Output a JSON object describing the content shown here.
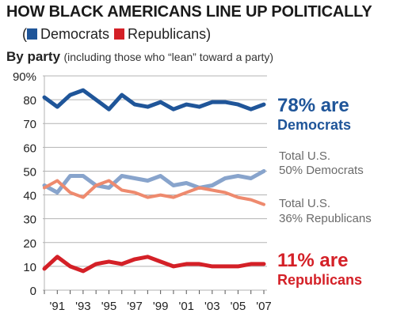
{
  "title": "HOW BLACK AMERICANS LINE UP POLITICALLY",
  "legend": {
    "open": "(",
    "close": ")",
    "democrats": "Democrats",
    "republicans": "Republicans"
  },
  "subtitle": {
    "bold": "By party",
    "note": "(including those who “lean” toward a party)"
  },
  "colors": {
    "black_dem": "#1f5599",
    "black_rep": "#d42027",
    "total_dem": "#88a4cc",
    "total_rep": "#ee8a6e",
    "grid": "#b3b3b3",
    "label_gray": "#6b6b6b"
  },
  "annotations": {
    "black_dem_value": "78% are",
    "black_dem_label": "Democrats",
    "total_dem_line1": "Total U.S.",
    "total_dem_line2": "50% Democrats",
    "total_rep_line1": "Total U.S.",
    "total_rep_line2": "36% Republicans",
    "black_rep_value": "11% are",
    "black_rep_label": "Republicans"
  },
  "chart_data": {
    "type": "line",
    "ylim": [
      0,
      90
    ],
    "yticks": [
      "0",
      "10",
      "20",
      "30",
      "40",
      "50",
      "60",
      "70",
      "80",
      "90%"
    ],
    "xlim": [
      1990,
      2007
    ],
    "xtick_labels": [
      "'91",
      "'93",
      "'95",
      "'97",
      "'99",
      "'01",
      "'03",
      "'05",
      "'07"
    ],
    "grid": true,
    "x": [
      1990,
      1991,
      1992,
      1993,
      1994,
      1995,
      1996,
      1997,
      1998,
      1999,
      2000,
      2001,
      2002,
      2003,
      2004,
      2005,
      2006,
      2007
    ],
    "series": [
      {
        "key": "black_dem",
        "values": [
          81,
          77,
          82,
          84,
          80,
          76,
          82,
          78,
          77,
          79,
          76,
          78,
          77,
          79,
          79,
          78,
          76,
          78
        ]
      },
      {
        "key": "total_dem",
        "values": [
          44,
          41,
          48,
          48,
          44,
          43,
          48,
          47,
          46,
          48,
          44,
          45,
          43,
          44,
          47,
          48,
          47,
          50
        ]
      },
      {
        "key": "total_rep",
        "values": [
          43,
          46,
          41,
          39,
          44,
          46,
          42,
          41,
          39,
          40,
          39,
          41,
          43,
          42,
          41,
          39,
          38,
          36
        ]
      },
      {
        "key": "black_rep",
        "values": [
          9,
          14,
          10,
          8,
          11,
          12,
          11,
          13,
          14,
          12,
          10,
          11,
          11,
          10,
          10,
          10,
          11,
          11
        ]
      }
    ]
  }
}
